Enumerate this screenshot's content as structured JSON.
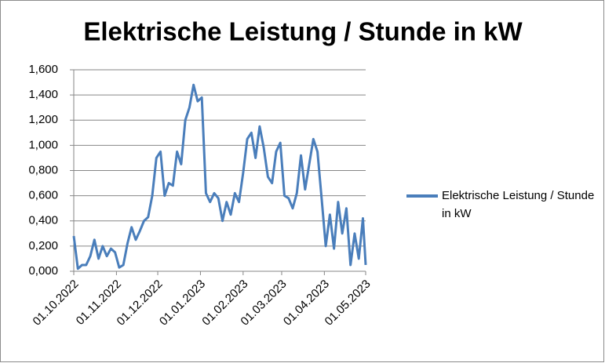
{
  "chart_data": {
    "type": "line",
    "title": "Elektrische Leistung / Stunde in kW",
    "x": [
      "01.10.2022",
      "04.10.2022",
      "07.10.2022",
      "10.10.2022",
      "13.10.2022",
      "16.10.2022",
      "19.10.2022",
      "22.10.2022",
      "25.10.2022",
      "28.10.2022",
      "31.10.2022",
      "03.11.2022",
      "06.11.2022",
      "09.11.2022",
      "12.11.2022",
      "15.11.2022",
      "18.11.2022",
      "21.11.2022",
      "24.11.2022",
      "27.11.2022",
      "30.11.2022",
      "03.12.2022",
      "06.12.2022",
      "09.12.2022",
      "12.12.2022",
      "15.12.2022",
      "18.12.2022",
      "21.12.2022",
      "24.12.2022",
      "27.12.2022",
      "30.12.2022",
      "02.01.2023",
      "05.01.2023",
      "08.01.2023",
      "11.01.2023",
      "14.01.2023",
      "17.01.2023",
      "20.01.2023",
      "23.01.2023",
      "26.01.2023",
      "29.01.2023",
      "01.02.2023",
      "04.02.2023",
      "07.02.2023",
      "10.02.2023",
      "13.02.2023",
      "16.02.2023",
      "19.02.2023",
      "22.02.2023",
      "25.02.2023",
      "28.02.2023",
      "03.03.2023",
      "06.03.2023",
      "09.03.2023",
      "12.03.2023",
      "15.03.2023",
      "18.03.2023",
      "21.03.2023",
      "24.03.2023",
      "27.03.2023",
      "30.03.2023",
      "02.04.2023",
      "05.04.2023",
      "08.04.2023",
      "11.04.2023",
      "14.04.2023",
      "17.04.2023",
      "20.04.2023",
      "23.04.2023",
      "26.04.2023",
      "29.04.2023",
      "01.05.2023"
    ],
    "series": [
      {
        "name": "Elektrische Leistung / Stunde in kW",
        "color": "#4a7ebb",
        "values": [
          0.28,
          0.02,
          0.05,
          0.05,
          0.12,
          0.25,
          0.1,
          0.2,
          0.12,
          0.18,
          0.15,
          0.03,
          0.05,
          0.22,
          0.35,
          0.25,
          0.32,
          0.4,
          0.43,
          0.6,
          0.9,
          0.95,
          0.6,
          0.7,
          0.68,
          0.95,
          0.85,
          1.2,
          1.3,
          1.48,
          1.35,
          1.38,
          0.62,
          0.55,
          0.62,
          0.58,
          0.4,
          0.55,
          0.45,
          0.62,
          0.55,
          0.78,
          1.05,
          1.1,
          0.9,
          1.15,
          0.98,
          0.75,
          0.7,
          0.95,
          1.02,
          0.6,
          0.58,
          0.5,
          0.62,
          0.92,
          0.65,
          0.85,
          1.05,
          0.95,
          0.58,
          0.2,
          0.45,
          0.18,
          0.55,
          0.3,
          0.5,
          0.05,
          0.3,
          0.1,
          0.42,
          0.05
        ]
      }
    ],
    "xlim": [
      "01.10.2022",
      "01.05.2023"
    ],
    "xticks": [
      "01.10.2022",
      "01.11.2022",
      "01.12.2022",
      "01.01.2023",
      "01.02.2023",
      "01.03.2023",
      "01.04.2023",
      "01.05.2023"
    ],
    "ylim": [
      0,
      1.6
    ],
    "yticks": [
      {
        "value": 0,
        "label": "0,000"
      },
      {
        "value": 0.2,
        "label": "0,200"
      },
      {
        "value": 0.4,
        "label": "0,400"
      },
      {
        "value": 0.6,
        "label": "0,600"
      },
      {
        "value": 0.8,
        "label": "0,800"
      },
      {
        "value": 1.0,
        "label": "1,000"
      },
      {
        "value": 1.2,
        "label": "1,200"
      },
      {
        "value": 1.4,
        "label": "1,400"
      },
      {
        "value": 1.6,
        "label": "1,600"
      }
    ],
    "grid": true,
    "legend": "right"
  }
}
